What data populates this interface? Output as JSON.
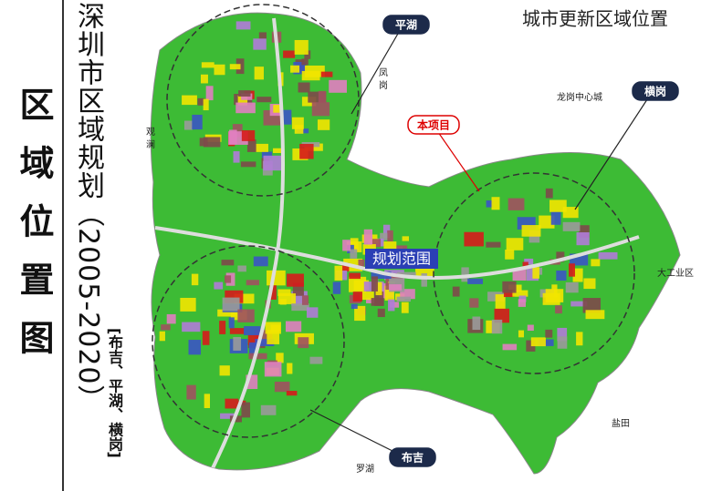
{
  "title": "区域位置图",
  "plan_title": "深圳市区域规划（2005-2020）",
  "districts_note": "[布吉、平湖、横岗]",
  "map": {
    "heading": "城市更新区域位置",
    "callouts": [
      {
        "label": "平湖"
      },
      {
        "label": "横岗"
      },
      {
        "label": "布吉"
      },
      {
        "label": "本项目"
      }
    ],
    "scope_label": "规划范围",
    "place_names": [
      "凤岗",
      "观澜",
      "龙岗中心城",
      "大工业区",
      "盐田",
      "罗湖"
    ]
  }
}
